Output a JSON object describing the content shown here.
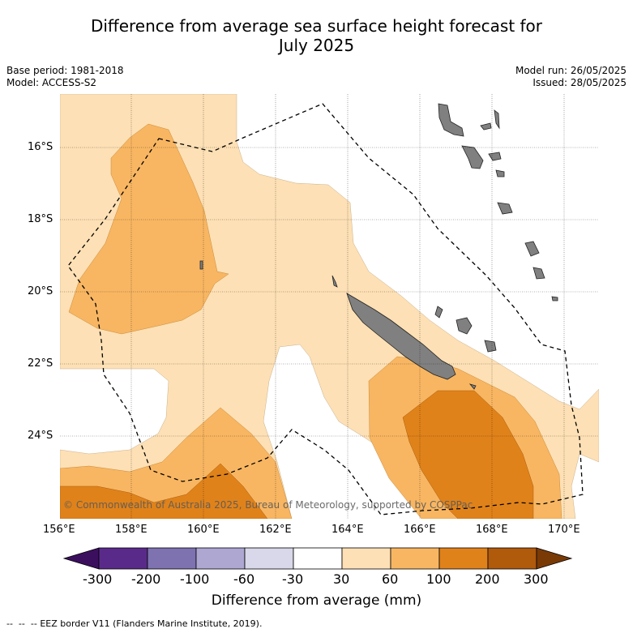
{
  "title_line1": "Difference from average sea surface height forecast for",
  "title_line2": "July 2025",
  "base_period": "Base period: 1981-2018",
  "model": "Model: ACCESS-S2",
  "model_run": "Model run: 26/05/2025",
  "issued": "Issued: 28/05/2025",
  "copyright": "© Commonwealth of Australia 2025, Bureau of Meteorology, supported by COSPPac",
  "lat_labels": [
    "16°S",
    "18°S",
    "20°S",
    "22°S",
    "24°S"
  ],
  "lon_labels": [
    "156°E",
    "158°E",
    "160°E",
    "162°E",
    "164°E",
    "166°E",
    "168°E",
    "170°E"
  ],
  "colorbar": {
    "title": "Difference from average (mm)",
    "ticks": [
      "-300",
      "-200",
      "-100",
      "-60",
      "-30",
      "30",
      "60",
      "100",
      "200",
      "300"
    ],
    "colors": [
      "#3b0f5e",
      "#5a2a8a",
      "#7f72b0",
      "#aea7d2",
      "#d8d8ea",
      "#ffffff",
      "#fde0b5",
      "#f8b662",
      "#e0821a",
      "#b05a0c",
      "#7a3a05"
    ]
  },
  "legend_text": "EEZ border V11 (Flanders Marine Institute, 2019).",
  "colors": {
    "land": "#808080",
    "band_30_60": "#fde0b5",
    "band_60_100": "#f8b662",
    "band_100_200": "#e0821a"
  }
}
